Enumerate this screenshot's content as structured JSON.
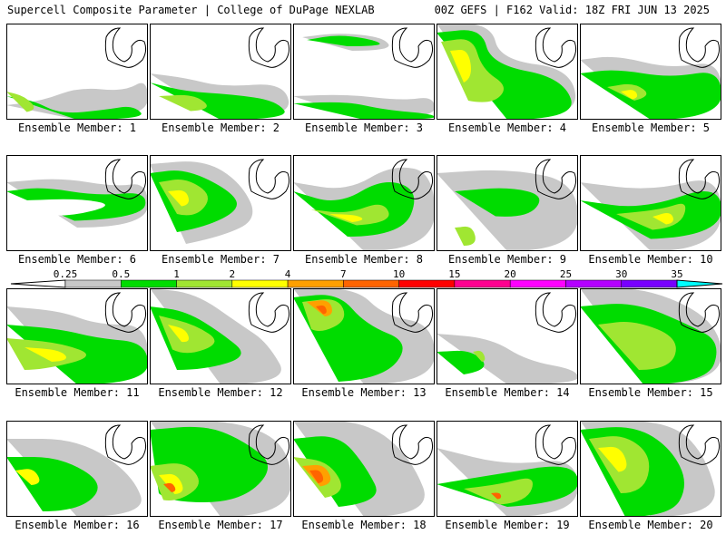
{
  "header": {
    "title": "Supercell Composite Parameter | College of DuPage NEXLAB",
    "run_info": "00Z GEFS | F162 Valid: 18Z FRI JUN 13 2025"
  },
  "legend": {
    "ticks": [
      "0.25",
      "0.5",
      "1",
      "2",
      "4",
      "7",
      "10",
      "15",
      "20",
      "25",
      "30",
      "35"
    ],
    "colors": [
      "#c8c8c8",
      "#00dc00",
      "#a0e632",
      "#ffff00",
      "#ffa000",
      "#ff6400",
      "#ff0000",
      "#ff0090",
      "#ff00ff",
      "#b400ff",
      "#7800ff",
      "#00ffff"
    ]
  },
  "panels": [
    {
      "label": "Ensemble Member: 1"
    },
    {
      "label": "Ensemble Member: 2"
    },
    {
      "label": "Ensemble Member: 3"
    },
    {
      "label": "Ensemble Member: 4"
    },
    {
      "label": "Ensemble Member: 5"
    },
    {
      "label": "Ensemble Member: 6"
    },
    {
      "label": "Ensemble Member: 7"
    },
    {
      "label": "Ensemble Member: 8"
    },
    {
      "label": "Ensemble Member: 9"
    },
    {
      "label": "Ensemble Member: 10"
    },
    {
      "label": "Ensemble Member: 11"
    },
    {
      "label": "Ensemble Member: 12"
    },
    {
      "label": "Ensemble Member: 13"
    },
    {
      "label": "Ensemble Member: 14"
    },
    {
      "label": "Ensemble Member: 15"
    },
    {
      "label": "Ensemble Member: 16"
    },
    {
      "label": "Ensemble Member: 17"
    },
    {
      "label": "Ensemble Member: 18"
    },
    {
      "label": "Ensemble Member: 19"
    },
    {
      "label": "Ensemble Member: 20"
    }
  ]
}
